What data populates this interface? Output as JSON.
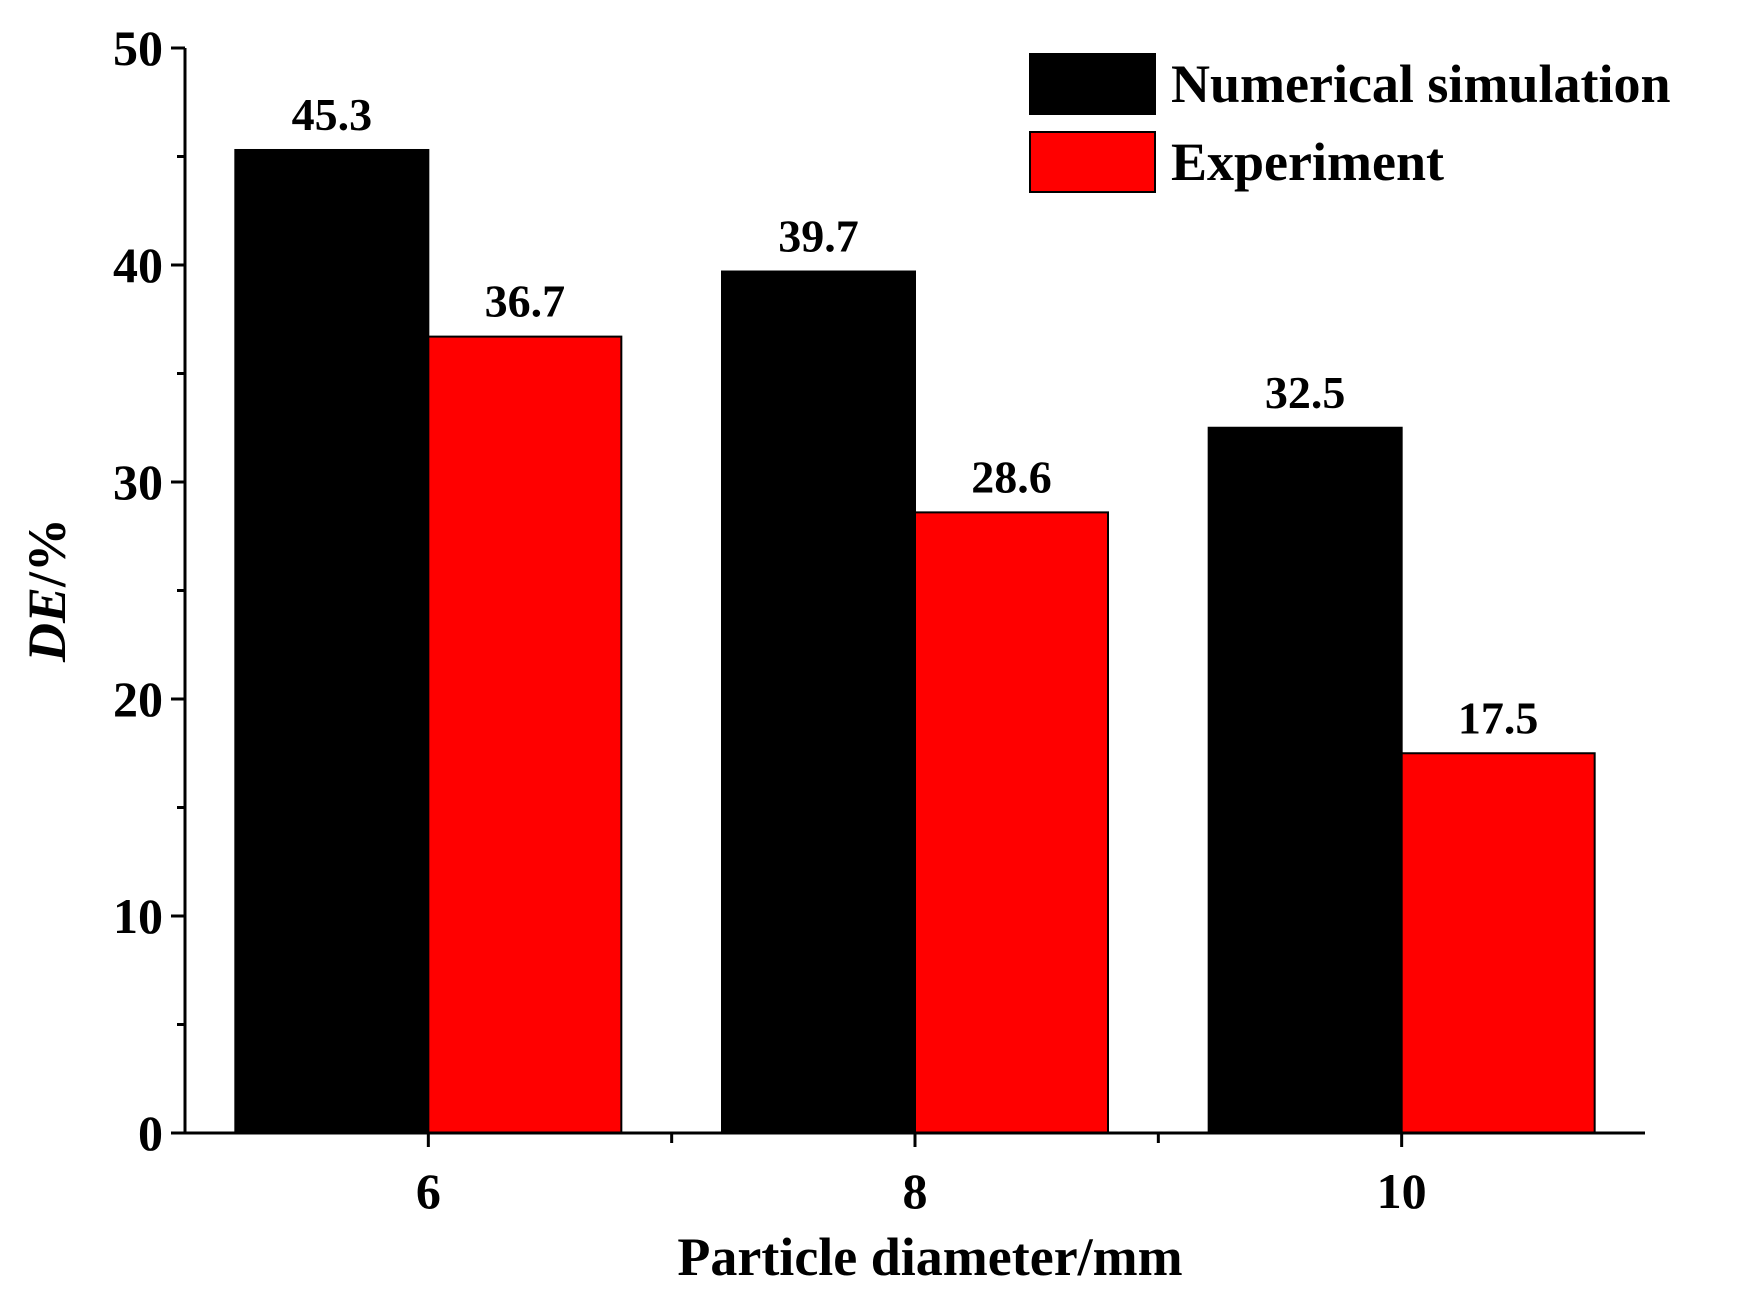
{
  "chart_data": {
    "type": "bar",
    "categories": [
      "6",
      "8",
      "10"
    ],
    "series": [
      {
        "name": "Numerical simulation",
        "values": [
          45.3,
          39.7,
          32.5
        ],
        "color": "#000000"
      },
      {
        "name": "Experiment",
        "values": [
          36.7,
          28.6,
          17.5
        ],
        "color": "#ff0000"
      }
    ],
    "data_labels": [
      [
        "45.3",
        "39.7",
        "32.5"
      ],
      [
        "36.7",
        "28.6",
        "17.5"
      ]
    ],
    "xlabel": "Particle diameter/mm",
    "ylabel_italic": "DE",
    "ylabel_suffix": "/%",
    "ylim": [
      0,
      50
    ],
    "yticks": [
      "0",
      "10",
      "20",
      "30",
      "40",
      "50"
    ],
    "legend_position": "top-right",
    "grid": false
  }
}
